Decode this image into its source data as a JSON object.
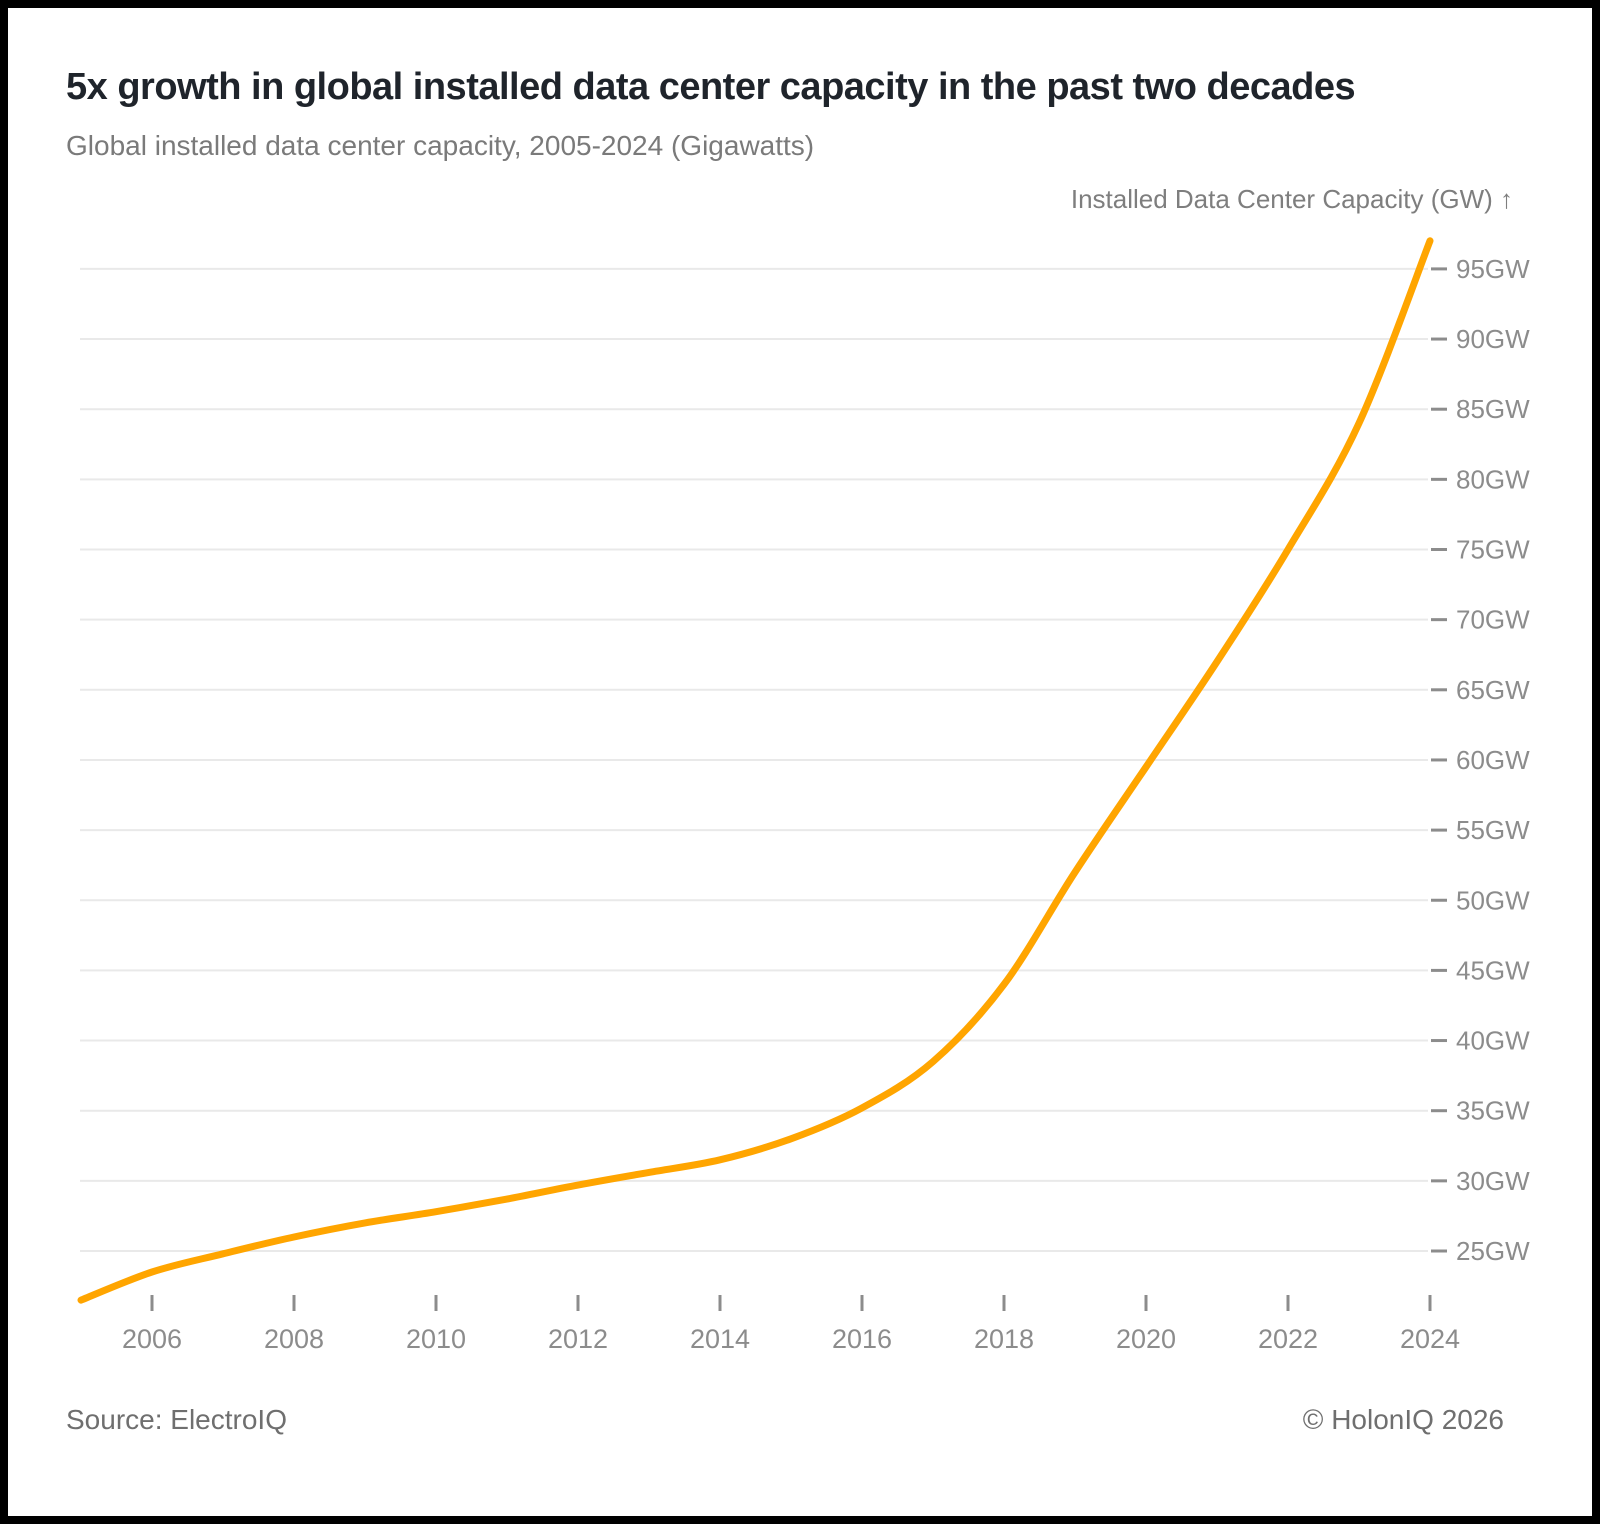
{
  "header": {
    "title": "5x growth in global installed data center capacity in the past two decades",
    "subtitle": "Global installed data center capacity, 2005-2024 (Gigawatts)"
  },
  "chart": {
    "axis_title": "Installed Data Center Capacity (GW) ↑"
  },
  "footer": {
    "source": "Source: ElectroIQ",
    "copyright": "© HolonIQ 2026"
  },
  "colors": {
    "line": "#FFA500",
    "grid": "#e9e9e9",
    "tick": "#8c8c8c",
    "title_text": "#1f242b",
    "subtitle_text": "#7a7a7a",
    "frame_border": "#000000"
  },
  "chart_data": {
    "type": "line",
    "title": "5x growth in global installed data center capacity in the past two decades",
    "subtitle": "Global installed data center capacity, 2005-2024 (Gigawatts)",
    "xlabel": "",
    "ylabel": "Installed Data Center Capacity (GW)",
    "x": [
      2005,
      2006,
      2007,
      2008,
      2009,
      2010,
      2011,
      2012,
      2013,
      2014,
      2015,
      2016,
      2017,
      2018,
      2019,
      2020,
      2021,
      2022,
      2023,
      2024
    ],
    "series": [
      {
        "name": "Installed Data Center Capacity (GW)",
        "values": [
          21.5,
          23.5,
          24.8,
          26.0,
          27.0,
          27.8,
          28.7,
          29.7,
          30.6,
          31.5,
          33.0,
          35.2,
          38.5,
          44.0,
          52.0,
          59.5,
          67.0,
          75.0,
          84.0,
          97.0
        ]
      }
    ],
    "ylim": [
      21,
      98
    ],
    "xlim": [
      2005,
      2024.3
    ],
    "grid": "horizontal",
    "legend": "none",
    "y_tick_values": [
      25,
      30,
      35,
      40,
      45,
      50,
      55,
      60,
      65,
      70,
      75,
      80,
      85,
      90,
      95
    ],
    "y_tick_labels": [
      "25GW",
      "30GW",
      "35GW",
      "40GW",
      "45GW",
      "50GW",
      "55GW",
      "60GW",
      "65GW",
      "70GW",
      "75GW",
      "80GW",
      "85GW",
      "90GW",
      "95GW"
    ],
    "x_tick_values": [
      2006,
      2008,
      2010,
      2012,
      2014,
      2016,
      2018,
      2020,
      2022,
      2024
    ],
    "x_tick_labels": [
      "2006",
      "2008",
      "2010",
      "2012",
      "2014",
      "2016",
      "2018",
      "2020",
      "2022",
      "2024"
    ]
  }
}
